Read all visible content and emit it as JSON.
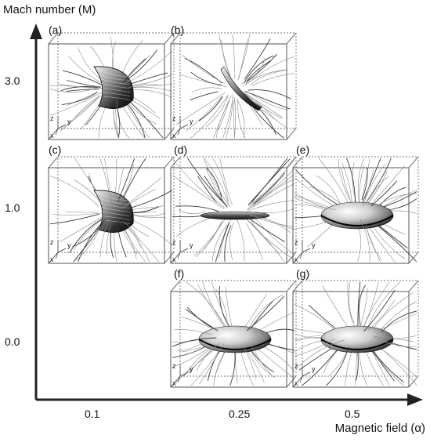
{
  "axes": {
    "y_title": "Mach number (M)",
    "x_title": "Magnetic field (α)",
    "y_ticks": [
      "3.0",
      "1.0",
      "0.0"
    ],
    "x_ticks": [
      "0.1",
      "0.25",
      "0.5"
    ]
  },
  "panels": [
    {
      "id": "a",
      "label": "(a)",
      "mach": "3.0",
      "field": "0.1",
      "shape": "cap"
    },
    {
      "id": "b",
      "label": "(b)",
      "mach": "3.0",
      "field": "0.25",
      "shape": "sheet"
    },
    {
      "id": "c",
      "label": "(c)",
      "mach": "1.0",
      "field": "0.1",
      "shape": "cap"
    },
    {
      "id": "d",
      "label": "(d)",
      "mach": "1.0",
      "field": "0.25",
      "shape": "flat-disk"
    },
    {
      "id": "e",
      "label": "(e)",
      "mach": "1.0",
      "field": "0.5",
      "shape": "oblate"
    },
    {
      "id": "f",
      "label": "(f)",
      "mach": "0.0",
      "field": "0.25",
      "shape": "oblate"
    },
    {
      "id": "g",
      "label": "(g)",
      "mach": "0.0",
      "field": "0.5",
      "shape": "oblate"
    }
  ],
  "box_axis_labels": {
    "z": "z",
    "x": "x",
    "y": "y"
  },
  "colors": {
    "axis": "#222222",
    "box_edge": "#444444",
    "field_line": "#8a8a8a",
    "field_line_dark": "#3a3a3a"
  },
  "icons": {
    "y_axis_arrow": "arrow-up",
    "x_axis_arrow": "arrow-right"
  }
}
